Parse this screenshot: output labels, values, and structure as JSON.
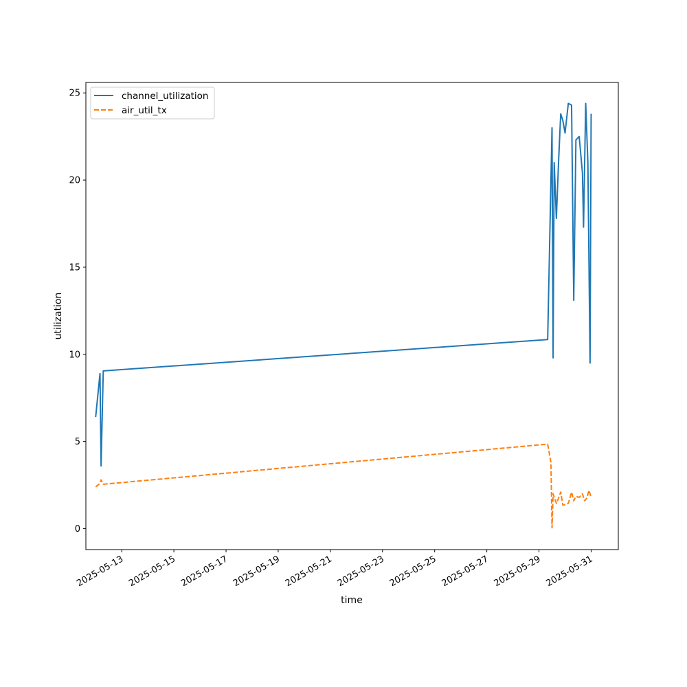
{
  "chart_data": {
    "type": "line",
    "title": "",
    "xlabel": "time",
    "ylabel": "utilization",
    "x_axis_type": "date",
    "xlim": [
      "2025-05-11T15:00",
      "2025-06-01T01:00"
    ],
    "ylim": [
      -1.2,
      25.6
    ],
    "y_ticks": [
      0,
      5,
      10,
      15,
      20,
      25
    ],
    "x_ticks": [
      "2025-05-13",
      "2025-05-15",
      "2025-05-17",
      "2025-05-19",
      "2025-05-21",
      "2025-05-23",
      "2025-05-25",
      "2025-05-27",
      "2025-05-29",
      "2025-05-31"
    ],
    "x_tick_rotation": 30,
    "grid": false,
    "legend_position": "top-left",
    "series": [
      {
        "name": "channel_utilization",
        "color": "#1f77b4",
        "line_style": "solid",
        "points": [
          [
            "2025-05-12T00:00",
            6.4
          ],
          [
            "2025-05-12T04:00",
            8.9
          ],
          [
            "2025-05-12T05:00",
            3.6
          ],
          [
            "2025-05-12T07:00",
            9.05
          ],
          [
            "2025-05-29T08:00",
            10.85
          ],
          [
            "2025-05-29T12:00",
            23.0
          ],
          [
            "2025-05-29T13:00",
            9.8
          ],
          [
            "2025-05-29T14:00",
            21.0
          ],
          [
            "2025-05-29T16:00",
            17.8
          ],
          [
            "2025-05-29T18:00",
            21.0
          ],
          [
            "2025-05-29T20:00",
            23.8
          ],
          [
            "2025-05-29T22:00",
            23.4
          ],
          [
            "2025-05-30T00:00",
            22.7
          ],
          [
            "2025-05-30T03:00",
            24.4
          ],
          [
            "2025-05-30T06:00",
            24.3
          ],
          [
            "2025-05-30T08:00",
            13.1
          ],
          [
            "2025-05-30T10:00",
            22.3
          ],
          [
            "2025-05-30T13:00",
            22.5
          ],
          [
            "2025-05-30T16:00",
            20.4
          ],
          [
            "2025-05-30T17:00",
            17.3
          ],
          [
            "2025-05-30T19:00",
            24.4
          ],
          [
            "2025-05-30T21:00",
            21.0
          ],
          [
            "2025-05-30T23:00",
            9.5
          ],
          [
            "2025-05-31T00:00",
            23.8
          ]
        ]
      },
      {
        "name": "air_util_tx",
        "color": "#ff7f0e",
        "line_style": "dashed",
        "points": [
          [
            "2025-05-12T00:00",
            2.4
          ],
          [
            "2025-05-12T04:00",
            2.6
          ],
          [
            "2025-05-12T05:00",
            2.8
          ],
          [
            "2025-05-12T07:00",
            2.55
          ],
          [
            "2025-05-29T08:00",
            4.85
          ],
          [
            "2025-05-29T11:00",
            3.8
          ],
          [
            "2025-05-29T12:00",
            0.05
          ],
          [
            "2025-05-29T13:00",
            2.0
          ],
          [
            "2025-05-29T16:00",
            1.45
          ],
          [
            "2025-05-29T18:00",
            1.75
          ],
          [
            "2025-05-29T20:00",
            2.1
          ],
          [
            "2025-05-29T22:00",
            1.35
          ],
          [
            "2025-05-30T01:00",
            1.4
          ],
          [
            "2025-05-30T03:00",
            1.45
          ],
          [
            "2025-05-30T06:00",
            2.1
          ],
          [
            "2025-05-30T08:00",
            1.6
          ],
          [
            "2025-05-30T10:00",
            1.85
          ],
          [
            "2025-05-30T13:00",
            1.8
          ],
          [
            "2025-05-30T16:00",
            2.0
          ],
          [
            "2025-05-30T18:00",
            1.6
          ],
          [
            "2025-05-30T20:00",
            1.75
          ],
          [
            "2025-05-30T22:00",
            2.2
          ],
          [
            "2025-05-31T00:00",
            1.8
          ]
        ]
      }
    ]
  }
}
